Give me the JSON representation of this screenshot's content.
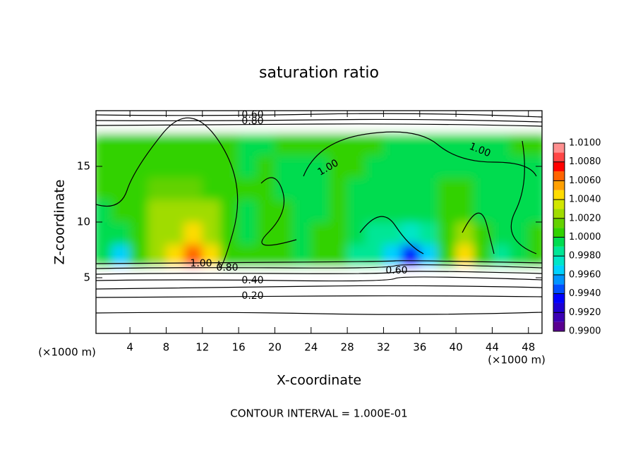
{
  "chart_data": {
    "type": "contour",
    "title": "saturation ratio",
    "x_label": "X-coordinate",
    "y_label": "Z-coordinate",
    "x_unit": "(×1000 m)",
    "y_unit": "(×1000 m)",
    "footnote": "CONTOUR INTERVAL = 1.000E-01",
    "xlim": [
      0.25,
      49.5
    ],
    "xticks": [
      4,
      8,
      12,
      16,
      20,
      24,
      28,
      32,
      36,
      40,
      44,
      48
    ],
    "ylim": [
      0,
      20
    ],
    "yticks": [
      5,
      10,
      15
    ],
    "x": [
      1,
      3,
      5,
      7,
      9,
      11,
      13,
      15,
      17,
      19,
      21,
      23,
      25,
      27,
      29,
      31,
      33,
      35,
      37,
      39,
      41,
      43,
      45,
      47,
      49
    ],
    "y": [
      1,
      3,
      5,
      7,
      9,
      11,
      13,
      15,
      17,
      19
    ],
    "z": [
      [
        0.15,
        0.15,
        0.15,
        0.15,
        0.15,
        0.15,
        0.15,
        0.15,
        0.15,
        0.15,
        0.15,
        0.15,
        0.15,
        0.15,
        0.15,
        0.15,
        0.15,
        0.15,
        0.15,
        0.15,
        0.15,
        0.15,
        0.15,
        0.15,
        0.15
      ],
      [
        0.3,
        0.3,
        0.3,
        0.3,
        0.3,
        0.3,
        0.3,
        0.3,
        0.3,
        0.3,
        0.3,
        0.3,
        0.3,
        0.3,
        0.3,
        0.3,
        0.3,
        0.3,
        0.3,
        0.3,
        0.3,
        0.3,
        0.3,
        0.3,
        0.3
      ],
      [
        0.55,
        0.55,
        0.55,
        0.55,
        0.55,
        0.55,
        0.55,
        0.55,
        0.55,
        0.55,
        0.55,
        0.55,
        0.55,
        0.55,
        0.55,
        0.55,
        0.55,
        0.55,
        0.55,
        0.55,
        0.55,
        0.55,
        0.55,
        0.55,
        0.55
      ],
      [
        0.999,
        0.996,
        1.0,
        1.002,
        1.004,
        1.007,
        1.004,
        1.0,
        1.0,
        1.001,
        1.0005,
        0.9995,
        1.0,
        1.0,
        0.9985,
        0.998,
        0.996,
        0.993,
        0.996,
        1.001,
        1.005,
        1.0,
        0.998,
        0.999,
        1.001
      ],
      [
        0.9995,
        0.999,
        1.0005,
        1.002,
        1.003,
        1.005,
        1.003,
        1.0005,
        0.9995,
        1.0005,
        1.0,
        0.9995,
        1.0,
        1.0005,
        0.9995,
        0.9985,
        0.998,
        0.997,
        0.9985,
        1.001,
        1.002,
        1.0005,
        0.999,
        0.999,
        1.0
      ],
      [
        0.9995,
        1.0005,
        1.001,
        1.002,
        1.0025,
        1.003,
        1.002,
        1.0005,
        0.9995,
        1.0005,
        1.0005,
        0.9995,
        0.9995,
        1.0,
        0.9995,
        0.999,
        0.9995,
        0.999,
        0.9995,
        1.0005,
        1.0005,
        0.9995,
        0.999,
        0.9995,
        0.9995
      ],
      [
        1.0005,
        1.0005,
        1.001,
        1.0015,
        1.0015,
        1.0015,
        1.001,
        1.0005,
        1.0,
        1.0005,
        0.9995,
        0.9995,
        0.9995,
        1.0,
        0.9995,
        0.9995,
        0.999,
        0.9995,
        0.9995,
        1.0,
        1.0,
        0.9995,
        0.9995,
        0.9995,
        0.9995
      ],
      [
        1.0005,
        1.0,
        1.0005,
        1.001,
        1.001,
        1.001,
        1.0005,
        1.0,
        0.9995,
        1.0,
        0.9995,
        0.9995,
        0.9995,
        1.0,
        1.0,
        0.9995,
        0.9995,
        0.999,
        0.9995,
        0.9995,
        0.9995,
        0.9995,
        0.9995,
        0.9995,
        0.9995
      ],
      [
        1.0,
        1.0005,
        1.001,
        1.001,
        1.001,
        1.0005,
        1.0,
        1.0,
        0.9995,
        0.9995,
        1.0,
        1.0,
        1.0,
        1.0,
        1.0,
        1.0,
        0.9995,
        0.9995,
        0.9995,
        0.9995,
        0.9995,
        0.9995,
        0.9995,
        1.0,
        1.0
      ],
      [
        0.7,
        0.7,
        0.7,
        0.7,
        0.7,
        0.7,
        0.7,
        0.7,
        0.7,
        0.7,
        0.7,
        0.7,
        0.7,
        0.7,
        0.7,
        0.7,
        0.7,
        0.7,
        0.7,
        0.7,
        0.7,
        0.7,
        0.7,
        0.7,
        0.7
      ]
    ],
    "colorbar_ticks": [
      {
        "value": 0.99,
        "label": "0.9900"
      },
      {
        "value": 0.992,
        "label": "0.9920"
      },
      {
        "value": 0.994,
        "label": "0.9940"
      },
      {
        "value": 0.996,
        "label": "0.9960"
      },
      {
        "value": 0.998,
        "label": "0.9980"
      },
      {
        "value": 1.0,
        "label": "1.0000"
      },
      {
        "value": 1.002,
        "label": "1.0020"
      },
      {
        "value": 1.004,
        "label": "1.0040"
      },
      {
        "value": 1.006,
        "label": "1.0060"
      },
      {
        "value": 1.008,
        "label": "1.0080"
      },
      {
        "value": 1.01,
        "label": "1.0100"
      }
    ],
    "colors": [
      "#5a0090",
      "#3c00b4",
      "#1e00d2",
      "#0000ff",
      "#0050ff",
      "#0096ff",
      "#00d2ff",
      "#00e6c8",
      "#00e696",
      "#00dc50",
      "#32d200",
      "#64d200",
      "#a0dc00",
      "#d2e600",
      "#ffdc00",
      "#ffa000",
      "#ff6400",
      "#ff0000",
      "#ff4646",
      "#ff9090"
    ],
    "contour_labels": [
      "0.60",
      "0.80",
      "1.00",
      "1.00",
      "1.00",
      "0.80",
      "0.40",
      "0.20",
      "0.60"
    ]
  }
}
